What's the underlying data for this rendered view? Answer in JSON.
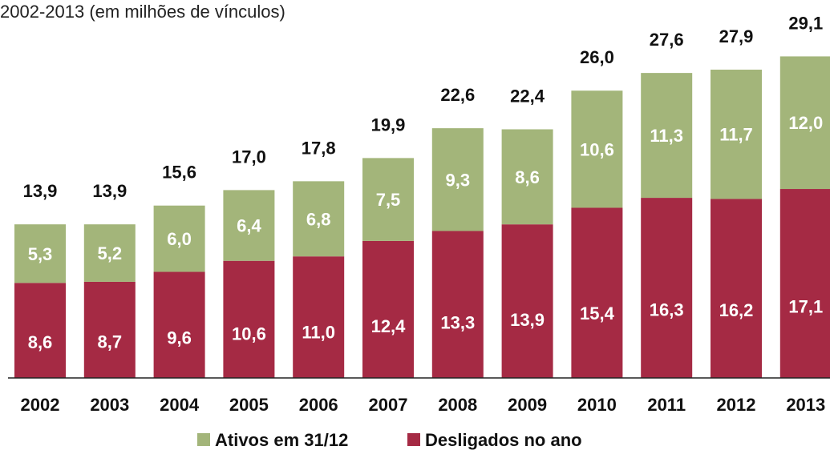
{
  "chart_data": {
    "type": "stacked_bar",
    "subtitle": "2002-2013 (em milhões de vínculos)",
    "categories": [
      "2002",
      "2003",
      "2004",
      "2005",
      "2006",
      "2007",
      "2008",
      "2009",
      "2010",
      "2011",
      "2012",
      "2013"
    ],
    "series": [
      {
        "name": "Desligados no ano",
        "color": "#a52a44",
        "values": [
          8.6,
          8.7,
          9.6,
          10.6,
          11.0,
          12.4,
          13.3,
          13.9,
          15.4,
          16.3,
          16.2,
          17.1
        ],
        "value_labels": [
          "8,6",
          "8,7",
          "9,6",
          "10,6",
          "11,0",
          "12,4",
          "13,3",
          "13,9",
          "15,4",
          "16,3",
          "16,2",
          "17,1"
        ]
      },
      {
        "name": "Ativos em 31/12",
        "color": "#a3b57a",
        "values": [
          5.3,
          5.2,
          6.0,
          6.4,
          6.8,
          7.5,
          9.3,
          8.6,
          10.6,
          11.3,
          11.7,
          12.0
        ],
        "value_labels": [
          "5,3",
          "5,2",
          "6,0",
          "6,4",
          "6,8",
          "7,5",
          "9,3",
          "8,6",
          "10,6",
          "11,3",
          "11,7",
          "12,0"
        ]
      }
    ],
    "total_labels": [
      "13,9",
      "13,9",
      "15,6",
      "17,0",
      "17,8",
      "19,9",
      "22,6",
      "22,4",
      "26,0",
      "27,6",
      "27,9",
      "29,1"
    ]
  }
}
